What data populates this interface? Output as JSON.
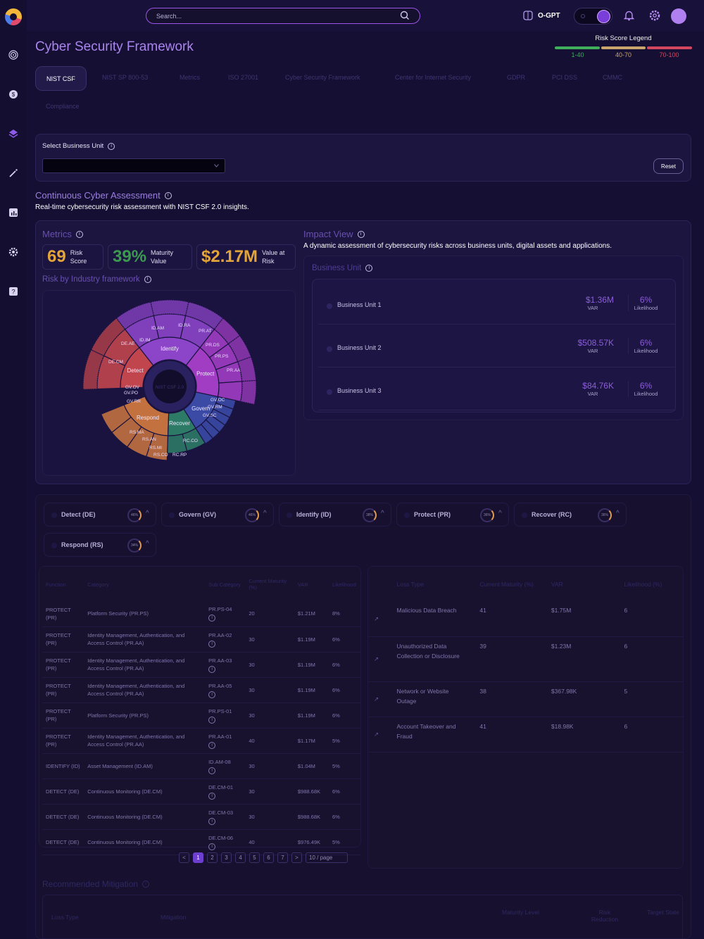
{
  "header": {
    "search_placeholder": "Search...",
    "ogpt_label": "O-GPT"
  },
  "page": {
    "title": "Cyber Security Framework"
  },
  "risk_legend": {
    "title": "Risk Score Legend",
    "ranges": [
      {
        "label": "1-40",
        "color": "#3fae5b"
      },
      {
        "label": "40-70",
        "color": "#c9a46b"
      },
      {
        "label": "70-100",
        "color": "#d2475e"
      }
    ]
  },
  "tabs": [
    "NIST CSF",
    "NIST SP 800-53",
    "Metrics",
    "ISO 27001",
    "Cyber Security Framework",
    "Center for Internet Security",
    "GDPR",
    "PCI DSS",
    "CMMC",
    "Compliance"
  ],
  "business_unit_select": {
    "label": "Select Business Unit",
    "value": "",
    "reset_label": "Reset"
  },
  "assessment": {
    "title": "Continuous Cyber Assessment",
    "subtitle": "Real-time cybersecurity risk assessment with NIST CSF 2.0 insights."
  },
  "metrics": {
    "title": "Metrics",
    "risk_score": {
      "value": "69",
      "label1": "Risk",
      "label2": "Score",
      "color": "#e3a43a"
    },
    "maturity": {
      "value": "39%",
      "label1": "Maturity",
      "label2": "Value",
      "color": "#3c9a4f"
    },
    "var": {
      "value": "$2.17M",
      "label1": "Value at",
      "label2": "Risk",
      "color": "#e3a43a"
    },
    "industry_title": "Risk by Industry framework"
  },
  "sunburst": {
    "center": "NIST CSF 2.0",
    "functions": [
      {
        "name": "Identify",
        "color": "#8c45c9"
      },
      {
        "name": "Protect",
        "color": "#a13dc3"
      },
      {
        "name": "Detect",
        "color": "#c1454d"
      },
      {
        "name": "Respond",
        "color": "#c2713f"
      },
      {
        "name": "Recover",
        "color": "#2d7a66"
      },
      {
        "name": "Govern",
        "color": "#3a4aa5"
      }
    ],
    "category_labels": [
      "ID.AM",
      "ID.RA",
      "ID.IM",
      "PR.AT",
      "PR.DS",
      "PR.PS",
      "PR.AA",
      "DE.AE",
      "DE.CM",
      "RS.MA",
      "RS.AN",
      "RS.MI",
      "RS.CO",
      "RC.RP",
      "RC.CO",
      "GV.OC",
      "GV.RM",
      "GV.SC",
      "GV.PO",
      "GV.RR",
      "GV.OV"
    ]
  },
  "impact_view": {
    "title": "Impact View",
    "subtitle": "A dynamic assessment of cybersecurity risks across business units, digital assets and applications.",
    "business_unit_title": "Business Unit",
    "units": [
      {
        "name": "Business Unit 1",
        "var": "$1.36M",
        "var_label": "VAR",
        "likelihood": "6%",
        "likelihood_label": "Likelihood"
      },
      {
        "name": "Business Unit 2",
        "var": "$508.57K",
        "var_label": "VAR",
        "likelihood": "6%",
        "likelihood_label": "Likelihood"
      },
      {
        "name": "Business Unit 3",
        "var": "$84.76K",
        "var_label": "VAR",
        "likelihood": "6%",
        "likelihood_label": "Likelihood"
      }
    ]
  },
  "function_chips": [
    {
      "label": "Detect (DE)",
      "pct": "46%"
    },
    {
      "label": "Govern (GV)",
      "pct": "46%"
    },
    {
      "label": "Identify (ID)",
      "pct": "38%"
    },
    {
      "label": "Protect (PR)",
      "pct": "36%"
    },
    {
      "label": "Recover (RC)",
      "pct": "36%"
    },
    {
      "label": "Respond (RS)",
      "pct": "34%"
    }
  ],
  "category_table": {
    "headers": [
      "Function",
      "Category",
      "Sub Category",
      "Current Maturity (%)",
      "VAR",
      "Likelihood"
    ],
    "rows": [
      [
        "PROTECT (PR)",
        "Platform Security (PR.PS)",
        "PR.PS-04",
        "20",
        "$1.21M",
        "8%"
      ],
      [
        "PROTECT (PR)",
        "Identity Management, Authentication, and Access Control (PR.AA)",
        "PR.AA-02",
        "30",
        "$1.19M",
        "6%"
      ],
      [
        "PROTECT (PR)",
        "Identity Management, Authentication, and Access Control (PR.AA)",
        "PR.AA-03",
        "30",
        "$1.19M",
        "6%"
      ],
      [
        "PROTECT (PR)",
        "Identity Management, Authentication, and Access Control (PR.AA)",
        "PR.AA-05",
        "30",
        "$1.19M",
        "6%"
      ],
      [
        "PROTECT (PR)",
        "Platform Security (PR.PS)",
        "PR.PS-01",
        "30",
        "$1.19M",
        "6%"
      ],
      [
        "PROTECT (PR)",
        "Identity Management, Authentication, and Access Control (PR.AA)",
        "PR.AA-01",
        "40",
        "$1.17M",
        "5%"
      ],
      [
        "IDENTIFY (ID)",
        "Asset Management (ID.AM)",
        "ID.AM-08",
        "30",
        "$1.04M",
        "5%"
      ],
      [
        "DETECT (DE)",
        "Continuous Monitoring (DE.CM)",
        "DE.CM-01",
        "30",
        "$988.68K",
        "6%"
      ],
      [
        "DETECT (DE)",
        "Continuous Monitoring (DE.CM)",
        "DE.CM-03",
        "30",
        "$988.68K",
        "6%"
      ],
      [
        "DETECT (DE)",
        "Continuous Monitoring (DE.CM)",
        "DE.CM-06",
        "40",
        "$976.49K",
        "5%"
      ]
    ]
  },
  "pagination": {
    "prev": "<",
    "pages": [
      "1",
      "2",
      "3",
      "4",
      "5",
      "6",
      "7"
    ],
    "next": ">",
    "page_size": "10 / page"
  },
  "loss_table": {
    "headers": [
      "Loss Type",
      "Current Maturity (%)",
      "VAR",
      "Likelihood (%)"
    ],
    "rows": [
      [
        "Malicious Data Breach",
        "41",
        "$1.75M",
        "6"
      ],
      [
        "Unauthorized Data Collection or Disclosure",
        "39",
        "$1.23M",
        "6"
      ],
      [
        "Network or Website Outage",
        "38",
        "$367.98K",
        "5"
      ],
      [
        "Account Takeover and Fraud",
        "41",
        "$18.98K",
        "6"
      ]
    ]
  },
  "mitigation": {
    "title": "Recommended Mitigation",
    "headers": [
      "Loss Type",
      "Mitigation",
      "Maturity Level",
      "Risk Reduction",
      "Target State"
    ]
  }
}
